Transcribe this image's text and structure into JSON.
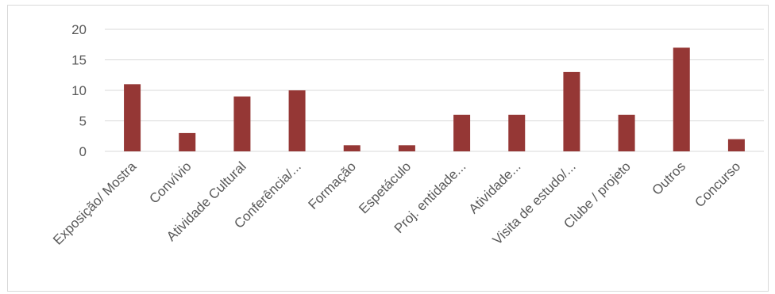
{
  "chart_data": {
    "type": "bar",
    "title": "",
    "xlabel": "",
    "ylabel": "",
    "categories": [
      "Exposição/ Mostra",
      "Convívio",
      "Atividade Cultural",
      "Conferência/...",
      "Formação",
      "Espetáculo",
      "Proj. entidade...",
      "Atividade...",
      "Visita de estudo/...",
      "Clube / projeto",
      "Outros",
      "Concurso"
    ],
    "values": [
      11,
      3,
      9,
      10,
      1,
      1,
      6,
      6,
      13,
      6,
      17,
      2
    ],
    "ylim": [
      0,
      20
    ],
    "yticks": [
      0,
      5,
      10,
      15,
      20
    ],
    "grid": true,
    "legend": "none",
    "colors": {
      "bar": "#953735",
      "grid": "#d9d9d9",
      "text": "#595959"
    }
  }
}
